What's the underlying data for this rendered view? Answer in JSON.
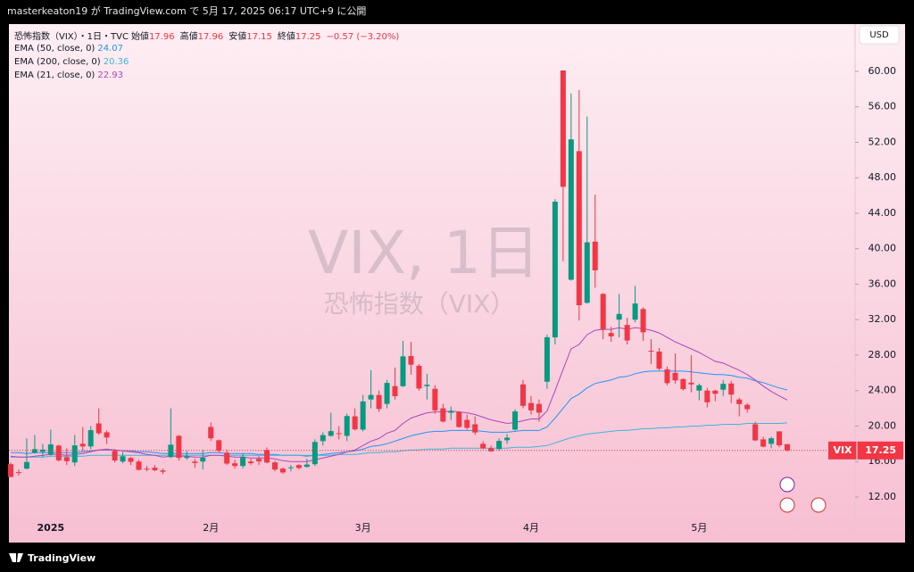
{
  "header": {
    "text": "masterkeaton19 が TradingView.com で 5月 17, 2025 06:17 UTC+9 に公開"
  },
  "footer": {
    "brand": "TradingView"
  },
  "chart_data": {
    "type": "candlestick",
    "symbol_title": "恐怖指数（VIX）・1日・TVC",
    "watermark": "VIX, 1日",
    "watermark_sub": "恐怖指数（VIX）",
    "ohlc_labels": {
      "open": "始値",
      "high": "高値",
      "low": "安値",
      "close": "終値"
    },
    "change": "−0.57 (−3.20%)",
    "currency": "USD",
    "price_tag": "VIX",
    "up_color": "#089981",
    "down_color": "#f23645",
    "categories": [
      null,
      null,
      null,
      null,
      null,
      "2025",
      null,
      null,
      null,
      null,
      null,
      null,
      null,
      null,
      null,
      null,
      null,
      null,
      null,
      null,
      null,
      null,
      null,
      null,
      null,
      "2月",
      null,
      null,
      null,
      null,
      null,
      null,
      null,
      null,
      null,
      null,
      null,
      null,
      null,
      null,
      null,
      null,
      null,
      null,
      "3月",
      null,
      null,
      null,
      null,
      null,
      null,
      null,
      null,
      null,
      null,
      null,
      null,
      null,
      null,
      null,
      null,
      null,
      null,
      null,
      null,
      "4月",
      null,
      null,
      null,
      null,
      null,
      null,
      null,
      null,
      null,
      null,
      null,
      null,
      null,
      null,
      null,
      null,
      null,
      null,
      null,
      null,
      "5月",
      null,
      null,
      null,
      null,
      null,
      null,
      null,
      null,
      null,
      null,
      null
    ],
    "open": [
      15.7,
      14.8,
      15.2,
      17.0,
      17.1,
      16.8,
      17.8,
      16.5,
      15.9,
      18.0,
      17.7,
      20.3,
      19.3,
      17.2,
      16.0,
      16.4,
      16.0,
      15.2,
      15.3,
      15.0,
      16.5,
      18.9,
      16.4,
      16.0,
      16.0,
      19.9,
      18.4,
      17.0,
      15.8,
      15.5,
      16.0,
      16.3,
      17.3,
      15.9,
      15.2,
      15.3,
      15.6,
      15.4,
      15.7,
      18.3,
      18.9,
      19.2,
      18.9,
      21.1,
      19.6,
      23.0,
      23.5,
      22.5,
      24.5,
      24.5,
      27.9,
      26.8,
      24.5,
      24.2,
      22.0,
      21.5,
      21.6,
      20.7,
      20.2,
      18.0,
      17.5,
      17.4,
      18.4,
      19.6,
      24.7,
      22.6,
      22.5,
      25.0,
      30.0,
      60.1,
      36.5,
      51.0,
      33.9,
      40.8,
      34.9,
      30.5,
      32.0,
      31.4,
      32.0,
      33.2,
      28.5,
      28.4,
      26.4,
      26.0,
      25.3,
      24.9,
      24.0,
      24.0,
      24.0,
      24.1,
      24.8,
      23.0,
      22.4,
      20.2,
      18.5,
      18.0,
      19.4,
      17.96
    ],
    "high": [
      15.9,
      15.1,
      18.6,
      19.0,
      18.0,
      19.6,
      17.9,
      17.5,
      19.0,
      19.9,
      20.0,
      22.0,
      19.5,
      17.4,
      17.1,
      16.5,
      16.2,
      15.5,
      15.6,
      15.2,
      22.0,
      19.0,
      17.2,
      16.3,
      17.3,
      20.4,
      18.5,
      17.3,
      16.2,
      16.9,
      16.3,
      16.6,
      17.6,
      16.1,
      15.3,
      15.6,
      15.7,
      16.3,
      18.5,
      19.3,
      21.5,
      20.0,
      21.4,
      22.0,
      23.5,
      26.3,
      24.0,
      25.2,
      26.6,
      29.6,
      29.5,
      27.0,
      25.9,
      24.6,
      22.5,
      22.2,
      21.7,
      21.3,
      21.1,
      18.3,
      17.8,
      18.6,
      19.1,
      21.9,
      25.2,
      23.4,
      23.0,
      30.3,
      45.6,
      60.1,
      57.5,
      57.9,
      54.9,
      46.1,
      35.0,
      31.2,
      34.9,
      32.2,
      35.8,
      33.4,
      29.8,
      28.8,
      26.7,
      28.2,
      25.4,
      28.0,
      24.8,
      24.3,
      24.1,
      25.2,
      25.1,
      23.2,
      22.6,
      20.5,
      18.8,
      18.8,
      19.4,
      17.96
    ],
    "low": [
      14.2,
      14.4,
      15.1,
      16.9,
      16.5,
      16.6,
      16.0,
      15.6,
      15.5,
      17.2,
      17.4,
      19.0,
      18.0,
      15.9,
      15.8,
      15.6,
      15.0,
      14.9,
      14.9,
      14.6,
      16.4,
      16.1,
      16.2,
      15.3,
      15.1,
      18.3,
      17.0,
      15.6,
      15.2,
      15.2,
      15.6,
      15.6,
      15.8,
      14.9,
      14.6,
      14.9,
      15.1,
      15.3,
      15.5,
      17.8,
      18.8,
      18.5,
      18.3,
      19.5,
      19.4,
      22.0,
      21.6,
      22.0,
      23.0,
      24.4,
      25.8,
      24.0,
      23.0,
      21.4,
      20.4,
      20.7,
      19.8,
      19.6,
      19.0,
      17.4,
      17.1,
      17.2,
      18.0,
      19.5,
      22.0,
      21.3,
      20.5,
      24.2,
      29.2,
      38.6,
      36.4,
      31.9,
      33.8,
      35.6,
      29.8,
      29.5,
      30.0,
      29.2,
      31.7,
      29.6,
      27.0,
      26.3,
      24.6,
      24.8,
      24.0,
      23.8,
      22.9,
      22.1,
      22.8,
      23.4,
      22.6,
      21.1,
      21.5,
      18.3,
      17.6,
      17.5,
      17.6,
      17.15
    ],
    "close": [
      14.27,
      14.73,
      15.95,
      17.4,
      17.35,
      17.93,
      16.13,
      16.04,
      17.82,
      17.7,
      19.54,
      19.19,
      18.71,
      16.12,
      16.6,
      15.97,
      15.06,
      15.1,
      15.02,
      14.85,
      17.9,
      16.41,
      16.56,
      15.84,
      16.43,
      18.62,
      17.21,
      15.77,
      15.5,
      16.54,
      15.81,
      16.02,
      15.89,
      15.1,
      14.77,
      15.35,
      15.27,
      15.66,
      18.21,
      18.98,
      19.43,
      19.1,
      21.13,
      19.63,
      22.78,
      23.51,
      21.93,
      24.87,
      23.37,
      27.86,
      26.92,
      24.23,
      24.66,
      21.77,
      20.51,
      21.7,
      19.9,
      19.8,
      19.28,
      17.48,
      17.15,
      18.33,
      18.69,
      21.65,
      22.28,
      21.77,
      21.51,
      30.02,
      45.31,
      46.98,
      52.33,
      33.62,
      40.72,
      37.56,
      30.89,
      30.12,
      32.64,
      29.65,
      33.82,
      30.57,
      28.45,
      26.47,
      24.84,
      25.15,
      24.17,
      24.7,
      24.6,
      22.68,
      23.64,
      24.76,
      23.55,
      22.48,
      21.9,
      18.39,
      17.68,
      18.62,
      17.83,
      17.25
    ],
    "series": [
      {
        "name": "EMA (50, close, 0)",
        "color": "#2196f3",
        "values": [
          17.0,
          17.0,
          16.9,
          17.0,
          17.0,
          17.0,
          17.0,
          17.0,
          17.0,
          17.1,
          17.2,
          17.3,
          17.3,
          17.3,
          17.2,
          17.2,
          17.1,
          17.1,
          17.0,
          16.9,
          16.9,
          16.9,
          16.9,
          16.9,
          16.9,
          17.0,
          17.0,
          16.9,
          16.9,
          16.9,
          16.9,
          16.8,
          16.8,
          16.8,
          16.7,
          16.7,
          16.7,
          16.6,
          16.7,
          16.8,
          16.9,
          17.0,
          17.1,
          17.2,
          17.4,
          17.7,
          17.8,
          18.0,
          18.3,
          18.6,
          18.9,
          19.1,
          19.3,
          19.4,
          19.4,
          19.5,
          19.5,
          19.5,
          19.5,
          19.4,
          19.3,
          19.3,
          19.3,
          19.4,
          19.5,
          19.5,
          19.5,
          19.9,
          20.9,
          22.0,
          23.1,
          23.6,
          24.3,
          24.8,
          25.0,
          25.2,
          25.5,
          25.6,
          25.9,
          26.1,
          26.2,
          26.2,
          26.2,
          26.2,
          26.2,
          26.1,
          26.0,
          25.9,
          25.8,
          25.8,
          25.7,
          25.5,
          25.4,
          25.1,
          24.9,
          24.6,
          24.3,
          24.07
        ]
      },
      {
        "name": "EMA (200, close, 0)",
        "color": "#3fb6d8",
        "values": [
          16.5,
          16.5,
          16.5,
          16.5,
          16.5,
          16.6,
          16.6,
          16.6,
          16.6,
          16.6,
          16.7,
          16.7,
          16.7,
          16.7,
          16.7,
          16.7,
          16.7,
          16.7,
          16.7,
          16.7,
          16.7,
          16.7,
          16.7,
          16.7,
          16.7,
          16.7,
          16.7,
          16.7,
          16.7,
          16.7,
          16.7,
          16.7,
          16.7,
          16.7,
          16.7,
          16.7,
          16.7,
          16.7,
          16.7,
          16.7,
          16.7,
          16.8,
          16.8,
          16.8,
          16.9,
          17.0,
          17.0,
          17.1,
          17.1,
          17.2,
          17.3,
          17.3,
          17.4,
          17.4,
          17.4,
          17.5,
          17.5,
          17.5,
          17.5,
          17.5,
          17.5,
          17.5,
          17.5,
          17.6,
          17.6,
          17.6,
          17.7,
          17.8,
          18.1,
          18.4,
          18.7,
          18.9,
          19.1,
          19.2,
          19.3,
          19.4,
          19.5,
          19.5,
          19.6,
          19.7,
          19.7,
          19.8,
          19.8,
          19.9,
          19.9,
          20.0,
          20.0,
          20.1,
          20.1,
          20.2,
          20.2,
          20.2,
          20.3,
          20.3,
          20.3,
          20.3,
          20.3,
          20.36
        ]
      },
      {
        "name": "EMA (21, close, 0)",
        "color": "#ab47bc",
        "values": [
          16.6,
          16.5,
          16.5,
          16.6,
          16.7,
          16.8,
          16.8,
          16.7,
          16.8,
          16.9,
          17.1,
          17.3,
          17.4,
          17.3,
          17.2,
          17.1,
          17.0,
          16.8,
          16.7,
          16.5,
          16.6,
          16.6,
          16.6,
          16.5,
          16.5,
          16.7,
          16.7,
          16.6,
          16.5,
          16.5,
          16.4,
          16.4,
          16.4,
          16.3,
          16.1,
          16.0,
          16.0,
          16.0,
          16.2,
          16.4,
          16.6,
          16.8,
          17.1,
          17.3,
          17.8,
          18.3,
          18.6,
          19.2,
          19.5,
          20.3,
          20.9,
          21.2,
          21.5,
          21.6,
          21.6,
          21.7,
          21.6,
          21.5,
          21.3,
          21.0,
          20.7,
          20.5,
          20.3,
          20.4,
          20.6,
          20.8,
          20.8,
          21.7,
          24.0,
          26.4,
          28.7,
          29.2,
          30.3,
          30.8,
          30.9,
          30.9,
          31.1,
          30.9,
          31.1,
          31.0,
          30.8,
          30.5,
          30.0,
          29.5,
          29.1,
          28.7,
          28.3,
          27.8,
          27.3,
          27.1,
          26.7,
          26.3,
          25.8,
          25.2,
          24.5,
          23.9,
          23.4,
          22.93
        ]
      }
    ],
    "ylim": [
      9.38,
      65.33
    ],
    "yticks": [
      {
        "value": 12,
        "label": "12.00"
      },
      {
        "value": 16,
        "label": "16.00"
      },
      {
        "value": 20,
        "label": "20.00"
      },
      {
        "value": 24,
        "label": "24.00"
      },
      {
        "value": 28,
        "label": "28.00"
      },
      {
        "value": 32,
        "label": "32.00"
      },
      {
        "value": 36,
        "label": "36.00"
      },
      {
        "value": 40,
        "label": "40.00"
      },
      {
        "value": 44,
        "label": "44.00"
      },
      {
        "value": 48,
        "label": "48.00"
      },
      {
        "value": 52,
        "label": "52.00"
      },
      {
        "value": 56,
        "label": "56.00"
      },
      {
        "value": 60,
        "label": "60.00"
      }
    ]
  }
}
